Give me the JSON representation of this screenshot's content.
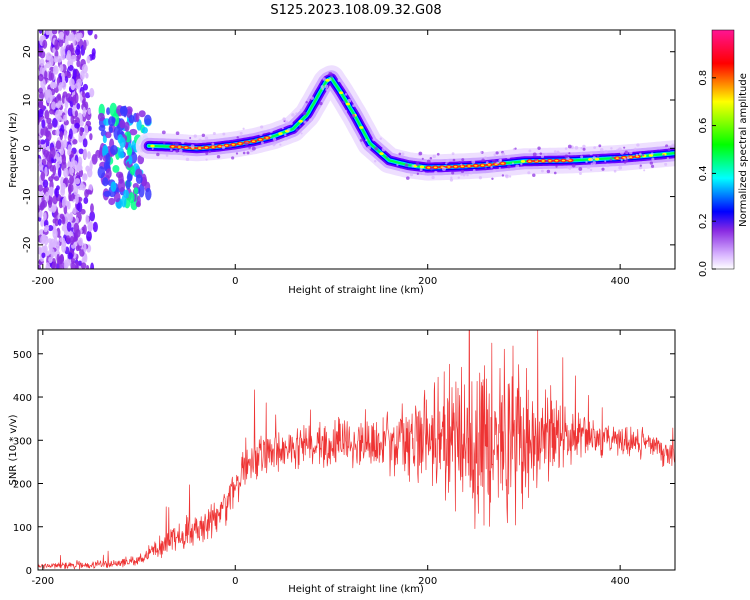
{
  "title": "S125.2023.108.09.32.G08",
  "chart_data": [
    {
      "type": "heatmap",
      "title": "",
      "xlabel": "Height of straight line (km)",
      "ylabel": "Frequency (Hz)",
      "xlim": [
        -205,
        457
      ],
      "ylim": [
        -25,
        24.5
      ],
      "xticks": [
        -200,
        0,
        200,
        400
      ],
      "yticks": [
        20,
        10,
        0,
        -10,
        -20
      ],
      "colorbar": {
        "label": "Normalized spectral amplitude",
        "range": [
          0,
          1
        ],
        "ticks": [
          0.0,
          0.2,
          0.4,
          0.6,
          0.8
        ],
        "colors": [
          "#ffffff",
          "#d8b4ff",
          "#8a2be2",
          "#0000ff",
          "#00ffff",
          "#00ff00",
          "#ffff00",
          "#ff0000",
          "#ff1493"
        ]
      },
      "ridge": {
        "x": [
          -90,
          -60,
          -40,
          -20,
          0,
          20,
          40,
          60,
          75,
          85,
          95,
          100,
          110,
          125,
          140,
          160,
          180,
          200,
          230,
          260,
          300,
          350,
          400,
          430,
          457
        ],
        "y": [
          0.5,
          0.3,
          0,
          0.3,
          0.8,
          1.5,
          2.5,
          4,
          7,
          10.5,
          14,
          14.5,
          11.5,
          6.5,
          1,
          -2.5,
          -3.5,
          -4,
          -3.8,
          -3.5,
          -2.7,
          -2.5,
          -2,
          -1.5,
          -1
        ]
      },
      "noise_region": {
        "x": [
          -205,
          -140
        ]
      },
      "grid": false
    },
    {
      "type": "line",
      "title": "",
      "xlabel": "Height of straight line (km)",
      "ylabel": "SNR (10 * v/v)",
      "xlim": [
        -205,
        457
      ],
      "ylim": [
        0,
        555
      ],
      "xticks": [
        -200,
        0,
        200,
        400
      ],
      "yticks": [
        0,
        100,
        200,
        300,
        400,
        500
      ],
      "color": "#ee3333",
      "envelope": {
        "x": [
          -205,
          -150,
          -120,
          -100,
          -80,
          -60,
          -40,
          -30,
          -20,
          0,
          10,
          20,
          30,
          40,
          60,
          80,
          100,
          150,
          200,
          250,
          300,
          350,
          400,
          430,
          450,
          457
        ],
        "y": [
          10,
          12,
          15,
          25,
          50,
          80,
          100,
          110,
          120,
          190,
          230,
          250,
          265,
          275,
          285,
          290,
          295,
          300,
          300,
          300,
          300,
          305,
          300,
          290,
          270,
          250
        ]
      },
      "spread": {
        "x": [
          -205,
          -100,
          -50,
          0,
          50,
          150,
          190,
          210,
          250,
          280,
          300,
          330,
          360,
          400,
          457
        ],
        "y": [
          5,
          10,
          30,
          40,
          35,
          50,
          80,
          110,
          150,
          170,
          140,
          80,
          40,
          30,
          30
        ]
      },
      "grid": false
    }
  ]
}
